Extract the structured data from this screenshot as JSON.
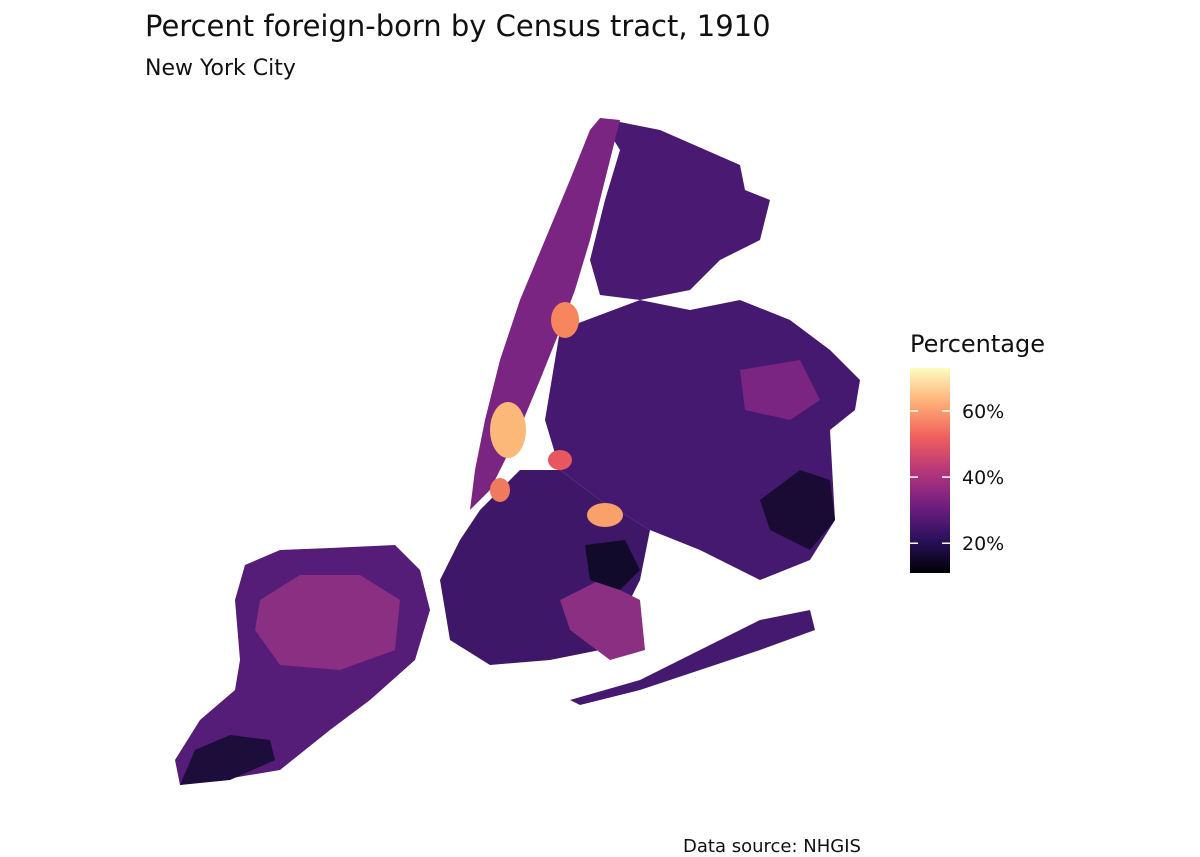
{
  "map": {
    "title": "Percent foreign-born by Census tract, 1910",
    "subtitle": "New York City",
    "legend": {
      "title": "Percentage",
      "range": [
        11,
        73
      ],
      "colors": [
        "#000004",
        "#2c115f",
        "#721f81",
        "#b73779",
        "#f1605d",
        "#feb078",
        "#fcfdbf"
      ],
      "ticks": [
        {
          "value": 20,
          "label": "20%"
        },
        {
          "value": 40,
          "label": "40%"
        },
        {
          "value": 60,
          "label": "60%"
        }
      ]
    },
    "caption": "Data source: NHGIS"
  }
}
